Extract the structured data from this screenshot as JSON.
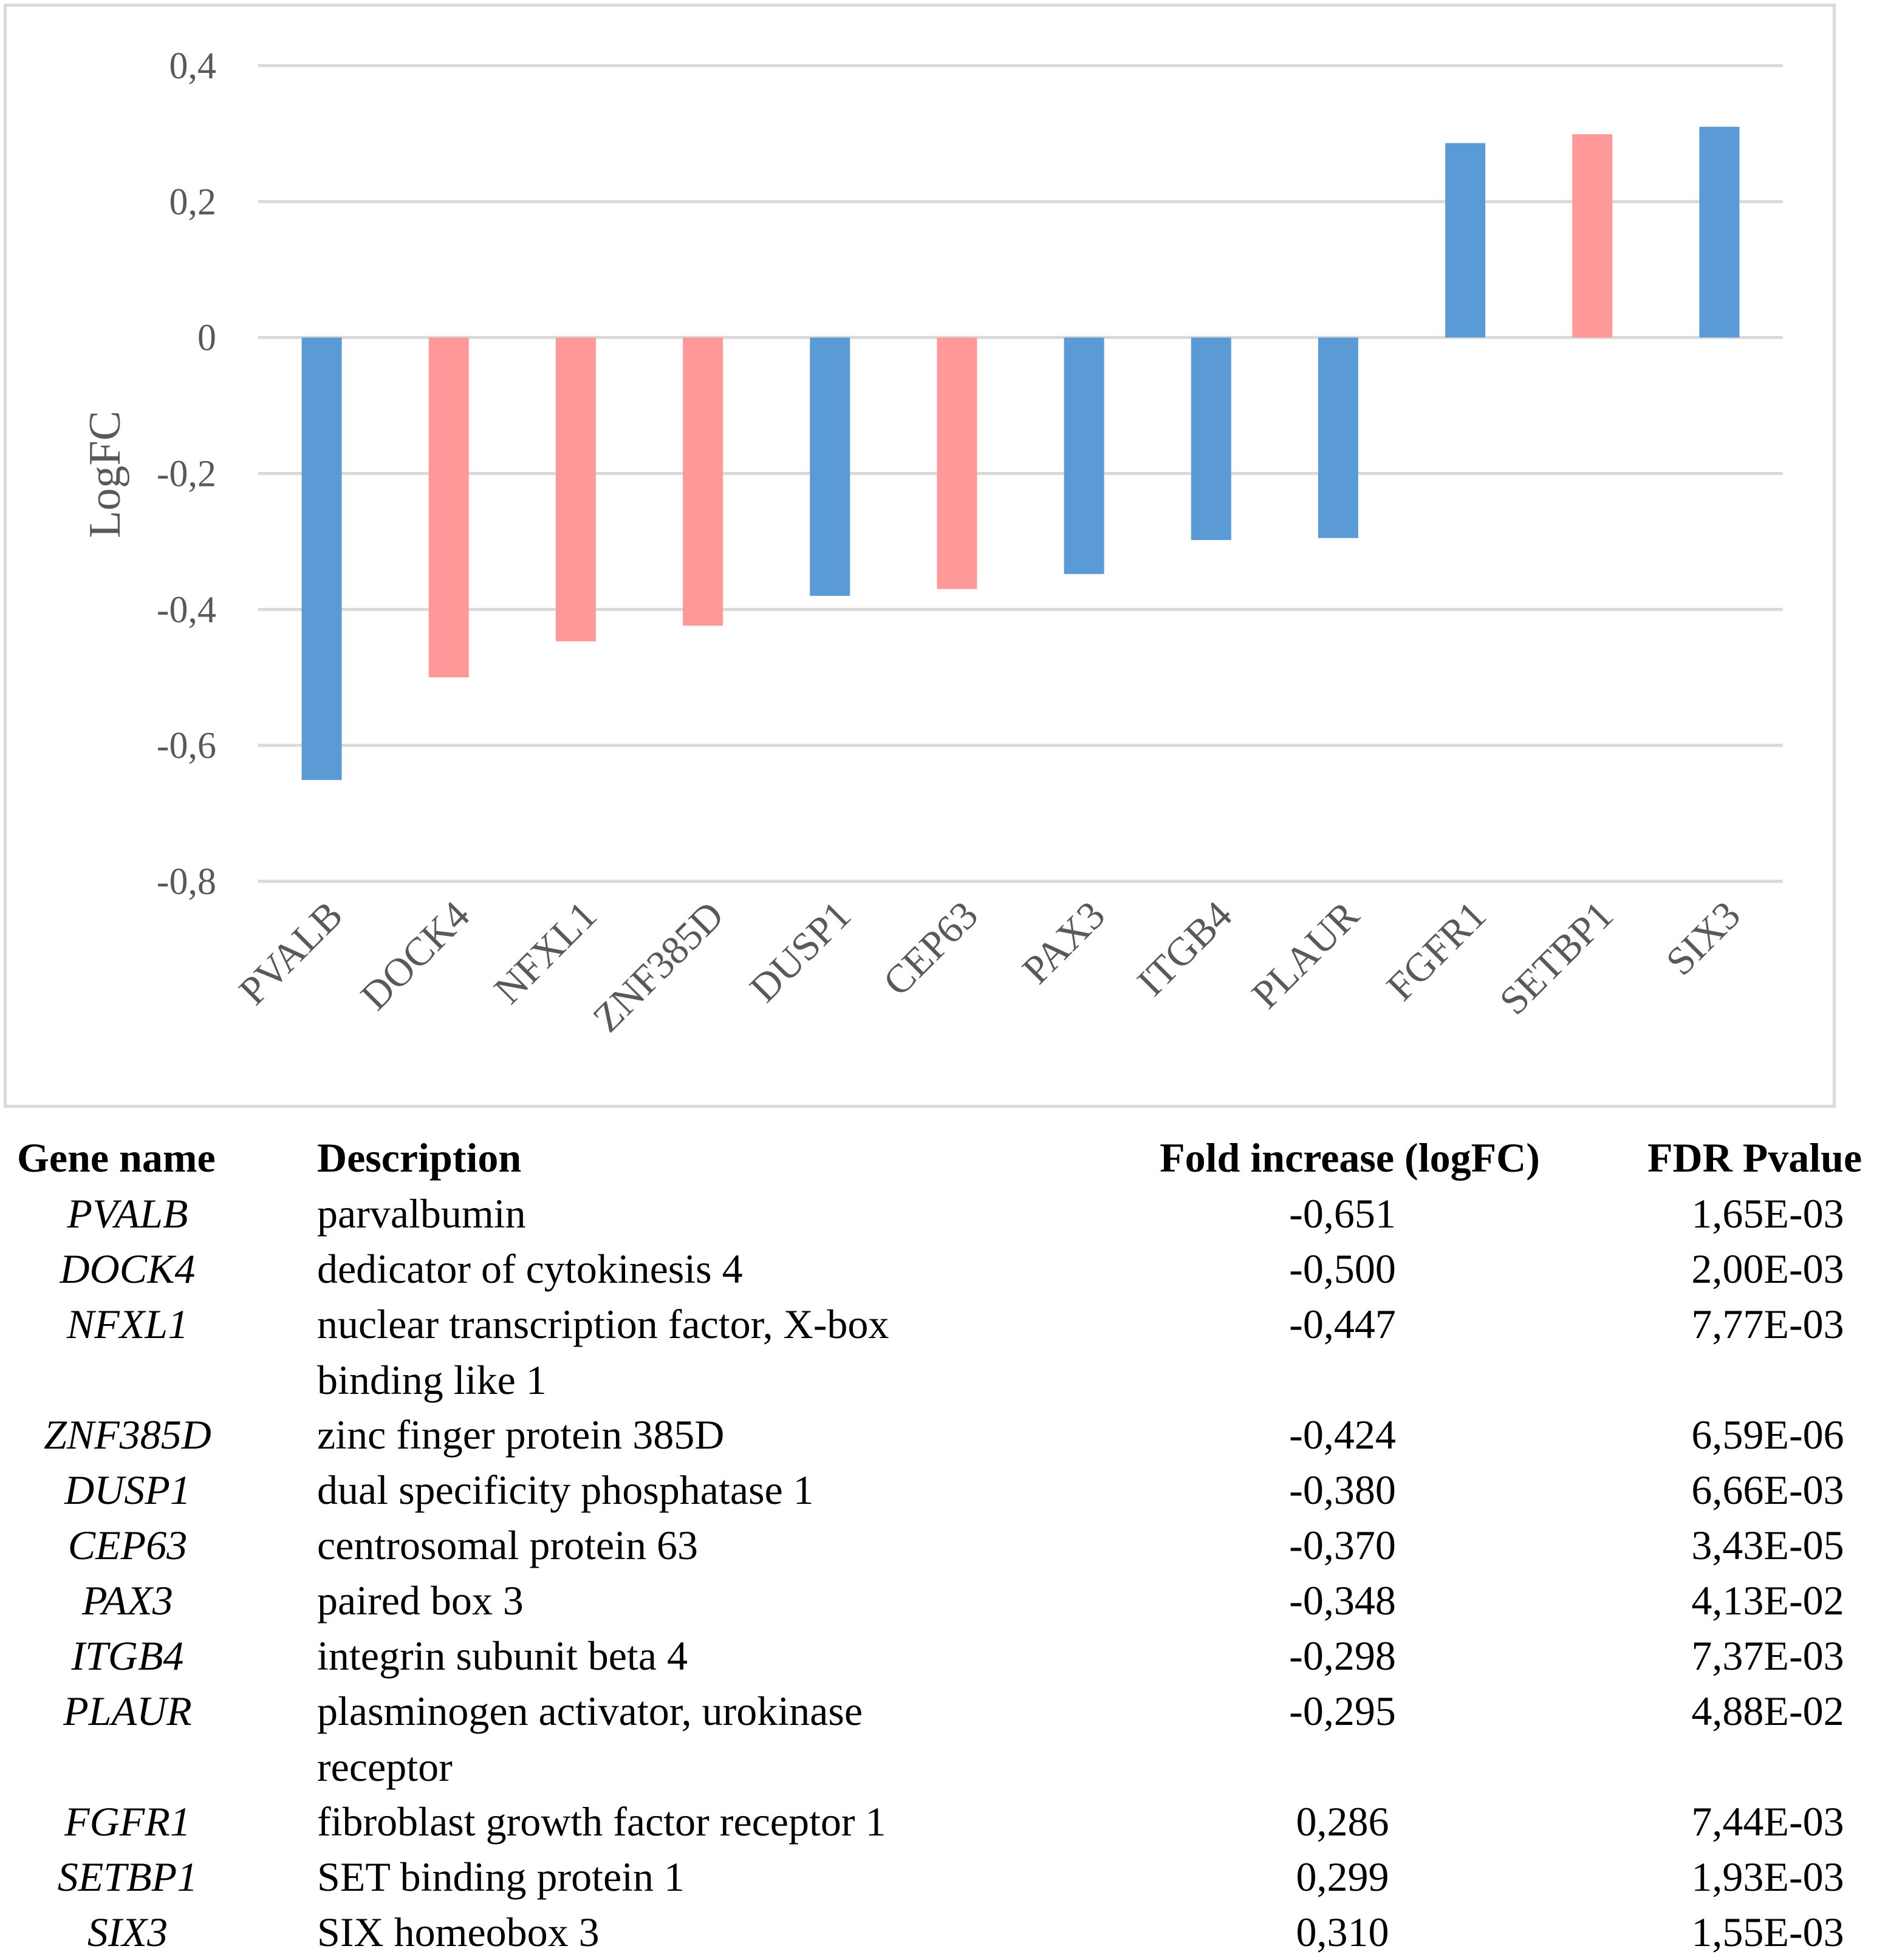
{
  "chart_data": {
    "type": "bar",
    "title": "",
    "xlabel": "",
    "ylabel": "LogFC",
    "ylim": [
      -0.8,
      0.4
    ],
    "yticks": [
      "0,4",
      "0,2",
      "0",
      "-0,2",
      "-0,4",
      "-0,6",
      "-0,8"
    ],
    "ytick_values": [
      0.4,
      0.2,
      0,
      -0.2,
      -0.4,
      -0.6,
      -0.8
    ],
    "grid": true,
    "categories": [
      "PVALB",
      "DOCK4",
      "NFXL1",
      "ZNF385D",
      "DUSP1",
      "CEP63",
      "PAX3",
      "ITGB4",
      "PLAUR",
      "FGFR1",
      "SETBP1",
      "SIX3"
    ],
    "values": [
      -0.651,
      -0.5,
      -0.447,
      -0.424,
      -0.38,
      -0.37,
      -0.348,
      -0.298,
      -0.295,
      0.286,
      0.299,
      0.31
    ],
    "bar_colors": [
      "#5b9bd5",
      "#ff9999",
      "#ff9999",
      "#ff9999",
      "#5b9bd5",
      "#ff9999",
      "#5b9bd5",
      "#5b9bd5",
      "#5b9bd5",
      "#5b9bd5",
      "#ff9999",
      "#5b9bd5"
    ]
  },
  "table": {
    "headers": {
      "gene": "Gene name",
      "description": "Description",
      "fold": "Fold increase (logFC)",
      "fdr": "FDR Pvalue"
    },
    "rows": [
      {
        "gene": "PVALB",
        "description": "parvalbumin",
        "fold": "-0,651",
        "fdr": "1,65E-03"
      },
      {
        "gene": "DOCK4",
        "description": "dedicator of cytokinesis 4",
        "fold": "-0,500",
        "fdr": "2,00E-03"
      },
      {
        "gene": "NFXL1",
        "description": "nuclear transcription factor, X-box binding like 1",
        "fold": "-0,447",
        "fdr": "7,77E-03"
      },
      {
        "gene": "ZNF385D",
        "description": "zinc finger protein 385D",
        "fold": "-0,424",
        "fdr": "6,59E-06"
      },
      {
        "gene": "DUSP1",
        "description": "dual specificity phosphatase 1",
        "fold": "-0,380",
        "fdr": "6,66E-03"
      },
      {
        "gene": "CEP63",
        "description": "centrosomal protein 63",
        "fold": "-0,370",
        "fdr": "3,43E-05"
      },
      {
        "gene": "PAX3",
        "description": "paired box 3",
        "fold": "-0,348",
        "fdr": "4,13E-02"
      },
      {
        "gene": "ITGB4",
        "description": "integrin subunit beta 4",
        "fold": "-0,298",
        "fdr": "7,37E-03"
      },
      {
        "gene": "PLAUR",
        "description": "plasminogen activator, urokinase receptor",
        "fold": "-0,295",
        "fdr": "4,88E-02"
      },
      {
        "gene": "FGFR1",
        "description": "fibroblast growth factor receptor 1",
        "fold": "0,286",
        "fdr": "7,44E-03"
      },
      {
        "gene": "SETBP1",
        "description": "SET binding protein 1",
        "fold": "0,299",
        "fdr": "1,93E-03"
      },
      {
        "gene": "SIX3",
        "description": "SIX homeobox 3",
        "fold": "0,310",
        "fdr": "1,55E-03"
      }
    ]
  }
}
